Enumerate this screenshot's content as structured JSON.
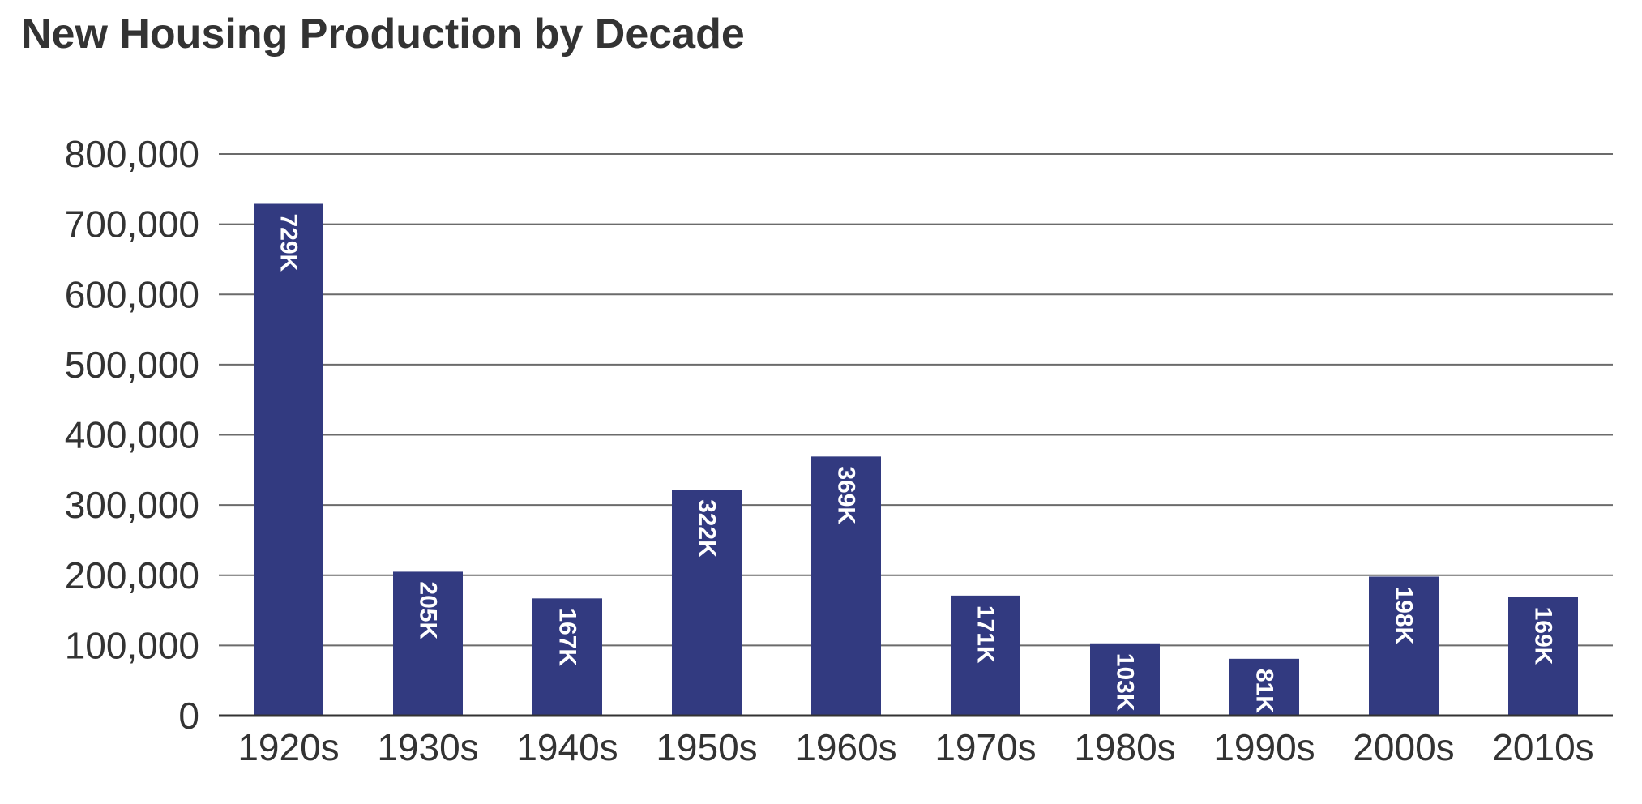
{
  "chart_data": {
    "type": "bar",
    "title": "New Housing Production by Decade",
    "xlabel": "",
    "ylabel": "",
    "categories": [
      "1920s",
      "1930s",
      "1940s",
      "1950s",
      "1960s",
      "1970s",
      "1980s",
      "1990s",
      "2000s",
      "2010s"
    ],
    "values": [
      729000,
      205000,
      167000,
      322000,
      369000,
      171000,
      103000,
      81000,
      198000,
      169000
    ],
    "data_labels": [
      "729K",
      "205K",
      "167K",
      "322K",
      "369K",
      "171K",
      "103K",
      "81K",
      "198K",
      "169K"
    ],
    "ylim": [
      0,
      800000
    ],
    "yticks": [
      0,
      100000,
      200000,
      300000,
      400000,
      500000,
      600000,
      700000,
      800000
    ],
    "ytick_labels": [
      "0",
      "100,000",
      "200,000",
      "300,000",
      "400,000",
      "500,000",
      "600,000",
      "700,000",
      "800,000"
    ],
    "grid": true,
    "legend": "none",
    "colors": {
      "bar": "#323a80",
      "grid": "#6b6b6b",
      "axis": "#333333",
      "text": "#333333",
      "bar_label": "#ffffff"
    }
  }
}
